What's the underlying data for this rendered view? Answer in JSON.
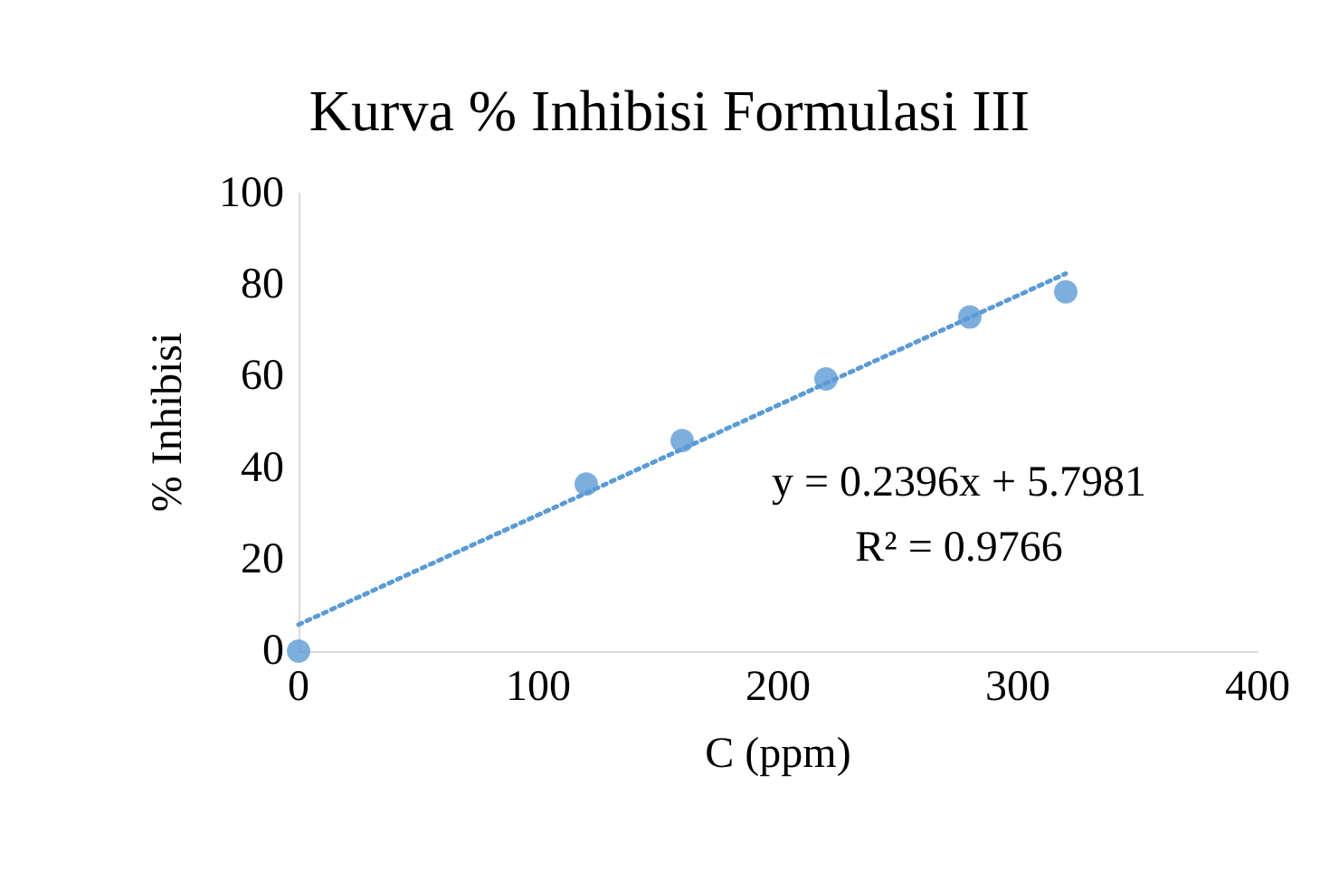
{
  "chart_data": {
    "type": "scatter",
    "title": "Kurva % Inhibisi Formulasi III",
    "xlabel": "C (ppm)",
    "ylabel": "% Inhibisi",
    "annotations": [
      "y = 0.2396x + 5.7981",
      "R² = 0.9766"
    ],
    "series": [
      {
        "color": "#5b9bd5",
        "x": [
          0,
          120,
          160,
          220,
          280,
          320
        ],
        "values": [
          0,
          36.5,
          46,
          59.5,
          73,
          78.5
        ],
        "marker": "circle"
      },
      {
        "type": "line",
        "color": "#5b9bd5",
        "x": [
          0,
          320
        ],
        "values": [
          5.8,
          82.5
        ],
        "marker": "none",
        "line_style": "dotted"
      }
    ],
    "xlim": [
      0,
      400
    ],
    "xticks": [
      0,
      100,
      200,
      300,
      400
    ],
    "ylim": [
      0,
      100
    ],
    "yticks": [
      0,
      20,
      40,
      60,
      80,
      100
    ],
    "grid": false
  }
}
